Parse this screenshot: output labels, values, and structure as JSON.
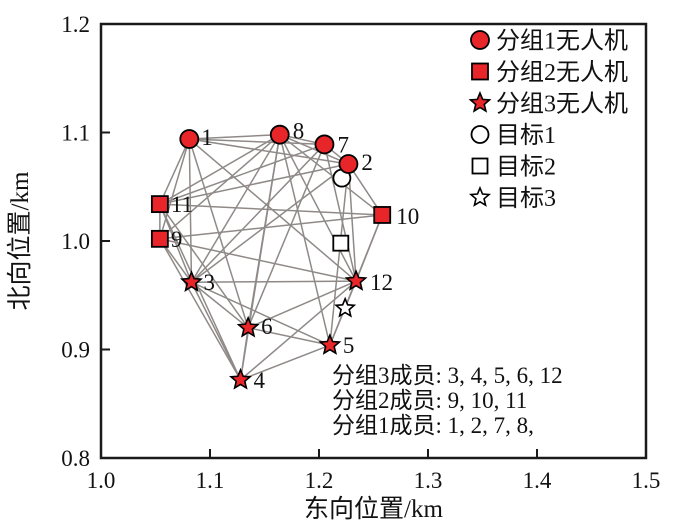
{
  "chart_data": {
    "type": "scatter",
    "title": "",
    "xlabel": "东向位置/km",
    "ylabel": "北向位置/km",
    "xlim": [
      1.0,
      1.5
    ],
    "ylim": [
      0.8,
      1.2
    ],
    "xticks": [
      "1.0",
      "1.1",
      "1.2",
      "1.3",
      "1.4",
      "1.5"
    ],
    "yticks": [
      "0.8",
      "0.9",
      "1.0",
      "1.1",
      "1.2"
    ],
    "grid": false,
    "legend_position": "top-right-inside",
    "colors": {
      "uav_fill": "#e8262a",
      "marker_stroke": "#000000",
      "edge": "#8f8a88",
      "axis": "#1a1a1a"
    },
    "nodes": [
      {
        "id": "t1",
        "group": 0,
        "marker": "circle",
        "filled": false,
        "x": 1.221,
        "y": 1.058
      },
      {
        "id": "t2",
        "group": 0,
        "marker": "square",
        "filled": false,
        "x": 1.22,
        "y": 0.998
      },
      {
        "id": "t3",
        "group": 0,
        "marker": "star",
        "filled": false,
        "x": 1.224,
        "y": 0.938
      },
      {
        "id": "1",
        "group": 1,
        "marker": "circle",
        "filled": true,
        "x": 1.081,
        "y": 1.094
      },
      {
        "id": "2",
        "group": 1,
        "marker": "circle",
        "filled": true,
        "x": 1.227,
        "y": 1.071
      },
      {
        "id": "7",
        "group": 1,
        "marker": "circle",
        "filled": true,
        "x": 1.205,
        "y": 1.089
      },
      {
        "id": "8",
        "group": 1,
        "marker": "circle",
        "filled": true,
        "x": 1.164,
        "y": 1.098
      },
      {
        "id": "9",
        "group": 2,
        "marker": "square",
        "filled": true,
        "x": 1.054,
        "y": 1.002
      },
      {
        "id": "10",
        "group": 2,
        "marker": "square",
        "filled": true,
        "x": 1.258,
        "y": 1.024
      },
      {
        "id": "11",
        "group": 2,
        "marker": "square",
        "filled": true,
        "x": 1.054,
        "y": 1.034
      },
      {
        "id": "3",
        "group": 3,
        "marker": "star",
        "filled": true,
        "x": 1.083,
        "y": 0.962
      },
      {
        "id": "4",
        "group": 3,
        "marker": "star",
        "filled": true,
        "x": 1.128,
        "y": 0.872
      },
      {
        "id": "5",
        "group": 3,
        "marker": "star",
        "filled": true,
        "x": 1.21,
        "y": 0.904
      },
      {
        "id": "6",
        "group": 3,
        "marker": "star",
        "filled": true,
        "x": 1.135,
        "y": 0.92
      },
      {
        "id": "12",
        "group": 3,
        "marker": "star",
        "filled": true,
        "x": 1.234,
        "y": 0.963
      }
    ],
    "edges": [
      [
        "1",
        "8"
      ],
      [
        "1",
        "7"
      ],
      [
        "1",
        "2"
      ],
      [
        "7",
        "8"
      ],
      [
        "7",
        "2"
      ],
      [
        "8",
        "2"
      ],
      [
        "9",
        "11"
      ],
      [
        "9",
        "10"
      ],
      [
        "10",
        "11"
      ],
      [
        "3",
        "4"
      ],
      [
        "3",
        "5"
      ],
      [
        "3",
        "6"
      ],
      [
        "3",
        "12"
      ],
      [
        "4",
        "5"
      ],
      [
        "4",
        "6"
      ],
      [
        "4",
        "12"
      ],
      [
        "5",
        "6"
      ],
      [
        "5",
        "12"
      ],
      [
        "6",
        "12"
      ],
      [
        "1",
        "11"
      ],
      [
        "1",
        "9"
      ],
      [
        "1",
        "3"
      ],
      [
        "1",
        "6"
      ],
      [
        "1",
        "12"
      ],
      [
        "8",
        "11"
      ],
      [
        "8",
        "9"
      ],
      [
        "8",
        "3"
      ],
      [
        "8",
        "6"
      ],
      [
        "8",
        "4"
      ],
      [
        "8",
        "5"
      ],
      [
        "8",
        "12"
      ],
      [
        "8",
        "10"
      ],
      [
        "7",
        "11"
      ],
      [
        "7",
        "3"
      ],
      [
        "7",
        "6"
      ],
      [
        "7",
        "12"
      ],
      [
        "2",
        "11"
      ],
      [
        "2",
        "3"
      ],
      [
        "2",
        "12"
      ],
      [
        "2",
        "10"
      ],
      [
        "2",
        "5"
      ],
      [
        "11",
        "3"
      ],
      [
        "11",
        "4"
      ],
      [
        "11",
        "6"
      ],
      [
        "9",
        "3"
      ],
      [
        "9",
        "4"
      ],
      [
        "9",
        "12"
      ],
      [
        "10",
        "12"
      ],
      [
        "10",
        "5"
      ]
    ],
    "legend": [
      {
        "marker": "circle",
        "filled": true,
        "label": "分组1无人机"
      },
      {
        "marker": "square",
        "filled": true,
        "label": "分组2无人机"
      },
      {
        "marker": "star",
        "filled": true,
        "label": "分组3无人机"
      },
      {
        "marker": "circle",
        "filled": false,
        "label": "目标1"
      },
      {
        "marker": "square",
        "filled": false,
        "label": "目标2"
      },
      {
        "marker": "star",
        "filled": false,
        "label": "目标3"
      }
    ],
    "annotations": [
      "分组3成员: 3, 4, 5, 6, 12",
      "分组2成员: 9, 10, 11",
      "分组1成员: 1, 2, 7, 8,"
    ]
  }
}
